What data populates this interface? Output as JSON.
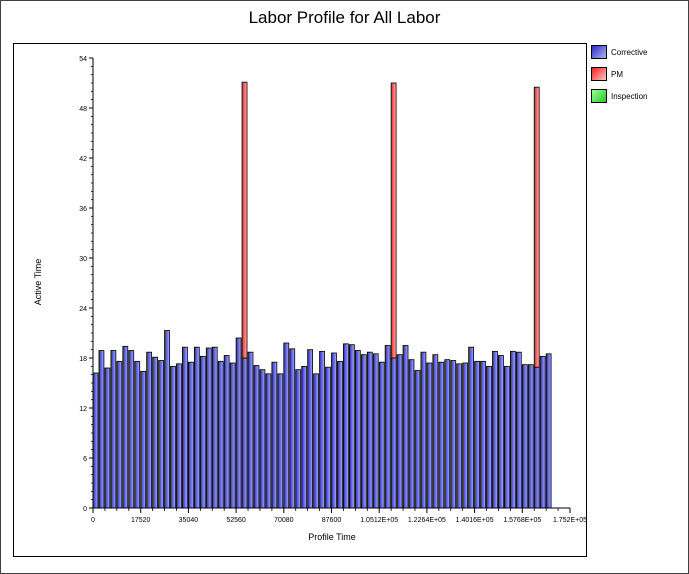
{
  "chart_data": {
    "type": "bar",
    "title": "Labor Profile for All Labor",
    "xlabel": "Profile Time",
    "ylabel": "Active Time",
    "ylim": [
      0,
      54
    ],
    "xlim": [
      0,
      175200
    ],
    "yticks": [
      0,
      6,
      12,
      18,
      24,
      30,
      36,
      42,
      48,
      54
    ],
    "xticks": [
      0,
      17520,
      35040,
      52560,
      70080,
      87600,
      105120,
      122640,
      140160,
      157680,
      175200
    ],
    "xtick_labels": [
      "0",
      "17520",
      "35040",
      "52560",
      "70080",
      "87600",
      "1.0512E+05",
      "1.2264E+05",
      "1.4016E+05",
      "1.5768E+05",
      "1.752E+05"
    ],
    "bin_width": 2190,
    "grid": false,
    "legend_placement": "right",
    "series": [
      {
        "name": "Corrective",
        "color": "#3333cc",
        "values": [
          16.2,
          18.9,
          16.8,
          18.9,
          17.6,
          19.4,
          18.9,
          17.6,
          16.4,
          18.7,
          18.1,
          17.7,
          21.3,
          17.0,
          17.3,
          19.3,
          17.5,
          19.3,
          18.2,
          19.2,
          19.3,
          17.6,
          18.3,
          17.4,
          20.4,
          18.0,
          18.7,
          17.1,
          16.6,
          16.1,
          17.5,
          16.1,
          19.8,
          19.1,
          16.6,
          17.0,
          19.0,
          16.1,
          18.8,
          16.9,
          18.6,
          17.6,
          19.7,
          19.6,
          18.9,
          18.4,
          18.7,
          18.5,
          17.5,
          19.5,
          18.0,
          18.4,
          19.5,
          17.8,
          16.5,
          18.7,
          17.4,
          18.4,
          17.5,
          17.8,
          17.7,
          17.3,
          17.4,
          19.3,
          17.6,
          17.6,
          17.0,
          18.8,
          18.3,
          17.0,
          18.8,
          18.7,
          17.2,
          17.2,
          16.9,
          18.2,
          18.5
        ]
      },
      {
        "name": "PM",
        "color": "#ff6666",
        "values": [
          0,
          0,
          0,
          0,
          0,
          0,
          0,
          0,
          0,
          0,
          0,
          0,
          0,
          0,
          0,
          0,
          0,
          0,
          0,
          0,
          0,
          0,
          0,
          0,
          0,
          33.1,
          0,
          0,
          0,
          0,
          0,
          0,
          0,
          0,
          0,
          0,
          0,
          0,
          0,
          0,
          0,
          0,
          0,
          0,
          0,
          0,
          0,
          0,
          0,
          0,
          33.0,
          0,
          0,
          0,
          0,
          0,
          0,
          0,
          0,
          0,
          0,
          0,
          0,
          0,
          0,
          0,
          0,
          0,
          0,
          0,
          0,
          0,
          0,
          0,
          33.6,
          0,
          0
        ]
      },
      {
        "name": "Inspection",
        "color": "#33dd33",
        "values": [
          0,
          0,
          0,
          0,
          0,
          0,
          0,
          0,
          0,
          0,
          0,
          0,
          0,
          0,
          0,
          0,
          0,
          0,
          0,
          0,
          0,
          0,
          0,
          0,
          0,
          0,
          0,
          0,
          0,
          0,
          0,
          0,
          0,
          0,
          0,
          0,
          0,
          0,
          0,
          0,
          0,
          0,
          0,
          0,
          0,
          0,
          0,
          0,
          0,
          0,
          0,
          0,
          0,
          0,
          0,
          0,
          0,
          0,
          0,
          0,
          0,
          0,
          0,
          0,
          0,
          0,
          0,
          0,
          0,
          0,
          0,
          0,
          0,
          0,
          0,
          0,
          0
        ]
      }
    ]
  }
}
